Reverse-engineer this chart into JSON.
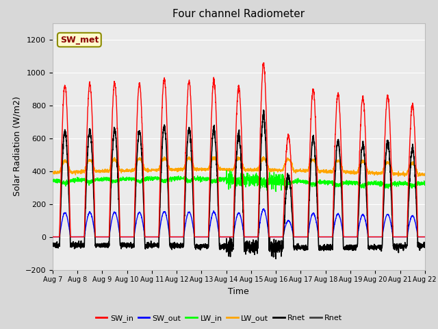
{
  "title": "Four channel Radiometer",
  "xlabel": "Time",
  "ylabel": "Solar Radiation (W/m2)",
  "ylim": [
    -200,
    1300
  ],
  "yticks": [
    -200,
    0,
    200,
    400,
    600,
    800,
    1000,
    1200
  ],
  "xtick_labels": [
    "Aug 7",
    "Aug 8",
    "Aug 9",
    "Aug 10",
    "Aug 11",
    "Aug 12",
    "Aug 13",
    "Aug 14",
    "Aug 15",
    "Aug 16",
    "Aug 17",
    "Aug 18",
    "Aug 19",
    "Aug 20",
    "Aug 21",
    "Aug 22"
  ],
  "annotation_text": "SW_met",
  "annotation_color": "#8B0000",
  "annotation_bg": "#FFFACD",
  "annotation_border": "#8B8B00",
  "colors": {
    "SW_in": "#FF0000",
    "SW_out": "#0000FF",
    "LW_in": "#00FF00",
    "LW_out": "#FFA500",
    "Rnet1": "#000000",
    "Rnet2": "#404040"
  },
  "legend_labels": [
    "SW_in",
    "SW_out",
    "LW_in",
    "LW_out",
    "Rnet",
    "Rnet"
  ],
  "legend_colors": [
    "#FF0000",
    "#0000FF",
    "#00FF00",
    "#FFA500",
    "#000000",
    "#404040"
  ],
  "bg_color": "#D8D8D8",
  "plot_bg": "#EBEBEB",
  "grid_color": "#FFFFFF",
  "sw_in_peaks": [
    920,
    930,
    935,
    930,
    960,
    945,
    945,
    910,
    1050,
    615,
    895,
    870,
    845,
    855,
    800
  ],
  "n_days": 15,
  "day_start": 0.28,
  "day_end": 0.72,
  "sw_out_ratio": 0.16,
  "lw_in_base": 340,
  "lw_out_base": 390,
  "lw_variation": 30
}
